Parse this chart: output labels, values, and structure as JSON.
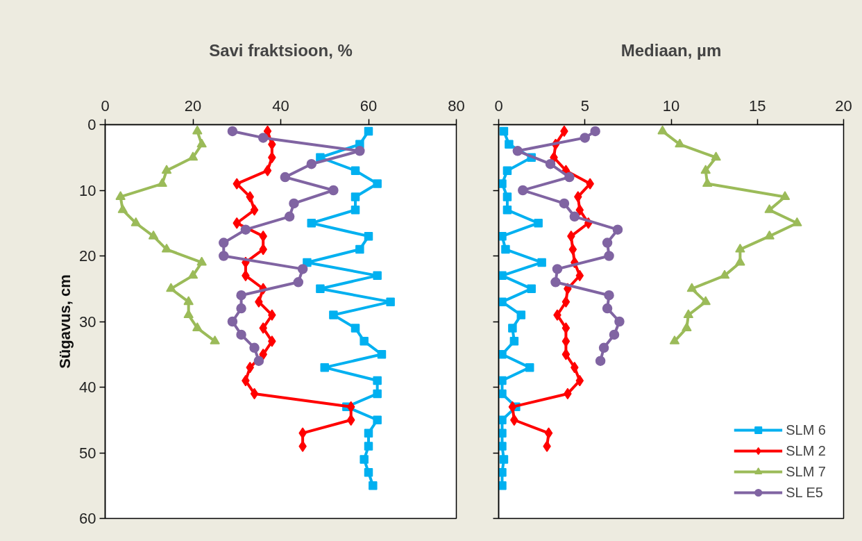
{
  "chart_data": [
    {
      "type": "line",
      "title": "Savi fraktsioon, %",
      "ylabel": "Sügavus, cm",
      "xlim": [
        0,
        80
      ],
      "xticks": [
        0,
        20,
        40,
        60,
        80
      ],
      "ylim": [
        60,
        0
      ],
      "yticks": [
        0,
        10,
        20,
        30,
        40,
        50,
        60
      ],
      "grid": false,
      "legend": false,
      "series": [
        {
          "color": "#00b0f0",
          "marker": "square",
          "x": [
            60,
            58,
            49,
            57,
            62,
            57,
            57,
            47,
            60,
            58,
            46,
            62,
            49,
            65,
            52,
            57,
            59,
            63,
            50,
            62,
            62,
            55,
            62,
            60,
            60,
            59,
            60,
            61
          ],
          "values": [
            1,
            3,
            5,
            7,
            9,
            11,
            13,
            15,
            17,
            19,
            21,
            23,
            25,
            27,
            29,
            31,
            33,
            35,
            37,
            39,
            41,
            43,
            45,
            47,
            49,
            51,
            53,
            55
          ]
        },
        {
          "color": "#ff0000",
          "marker": "diamond",
          "x": [
            37,
            38,
            38,
            37,
            30,
            33,
            34,
            30,
            36,
            36,
            32,
            32,
            36,
            35,
            38,
            36,
            38,
            36,
            33,
            32,
            34,
            56,
            56,
            45,
            45
          ],
          "values": [
            1,
            3,
            5,
            7,
            9,
            11,
            13,
            15,
            17,
            19,
            21,
            23,
            25,
            27,
            29,
            31,
            33,
            35,
            37,
            39,
            41,
            43,
            45,
            47,
            49
          ]
        },
        {
          "color": "#9bbb59",
          "marker": "triangle",
          "x": [
            21,
            22,
            20,
            14,
            13,
            3.5,
            4,
            7,
            11,
            14,
            22,
            20,
            15,
            19,
            19,
            21,
            25
          ],
          "values": [
            1,
            3,
            5,
            7,
            9,
            11,
            13,
            15,
            17,
            19,
            21,
            23,
            25,
            27,
            29,
            31,
            33
          ]
        },
        {
          "color": "#8064a2",
          "marker": "circle",
          "x": [
            29,
            36,
            58,
            47,
            41,
            52,
            43,
            42,
            32,
            27,
            27,
            45,
            44,
            31,
            31,
            29,
            31,
            34,
            35
          ],
          "values": [
            1,
            2,
            4,
            6,
            8,
            10,
            12,
            14,
            16,
            18,
            20,
            22,
            24,
            26,
            28,
            30,
            32,
            34,
            36
          ]
        }
      ]
    },
    {
      "type": "line",
      "title": "Mediaan, µm",
      "xlim": [
        0,
        20
      ],
      "xticks": [
        0,
        5,
        10,
        15,
        20
      ],
      "ylim": [
        60,
        0
      ],
      "yticks": [
        0,
        10,
        20,
        30,
        40,
        50,
        60
      ],
      "grid": false,
      "legend": "bottom right",
      "tick_labels": "x",
      "series": [
        {
          "name": "SLM 6",
          "color": "#00b0f0",
          "marker": "square",
          "x": [
            0.3,
            0.6,
            1.9,
            0.5,
            0.2,
            0.5,
            0.5,
            2.3,
            0.2,
            0.4,
            2.5,
            0.2,
            1.9,
            0.2,
            1.3,
            0.8,
            0.9,
            0.2,
            1.8,
            0.2,
            0.2,
            1.0,
            0.2,
            0.2,
            0.2,
            0.3,
            0.2,
            0.2
          ],
          "values": [
            1,
            3,
            5,
            7,
            9,
            11,
            13,
            15,
            17,
            19,
            21,
            23,
            25,
            27,
            29,
            31,
            33,
            35,
            37,
            39,
            41,
            43,
            45,
            47,
            49,
            51,
            53,
            55
          ]
        },
        {
          "name": "SLM 2",
          "color": "#ff0000",
          "marker": "diamond",
          "x": [
            3.8,
            3.3,
            3.2,
            3.9,
            5.3,
            4.6,
            4.7,
            5.2,
            4.2,
            4.3,
            4.4,
            4.7,
            4.0,
            3.9,
            3.4,
            3.9,
            3.9,
            3.9,
            4.4,
            4.7,
            4.0,
            0.8,
            0.9,
            2.9,
            2.8
          ],
          "values": [
            1,
            3,
            5,
            7,
            9,
            11,
            13,
            15,
            17,
            19,
            21,
            23,
            25,
            27,
            29,
            31,
            33,
            35,
            37,
            39,
            41,
            43,
            45,
            47,
            49
          ]
        },
        {
          "name": "SLM 7",
          "color": "#9bbb59",
          "marker": "triangle",
          "x": [
            9.5,
            10.5,
            12.6,
            12.0,
            12.1,
            16.6,
            15.7,
            17.3,
            15.7,
            14.0,
            14.0,
            13.1,
            11.2,
            12.0,
            11.0,
            10.9,
            10.2
          ],
          "values": [
            1,
            3,
            5,
            7,
            9,
            11,
            13,
            15,
            17,
            19,
            21,
            23,
            25,
            27,
            29,
            31,
            33
          ]
        },
        {
          "name": "SL E5",
          "color": "#8064a2",
          "marker": "circle",
          "x": [
            5.6,
            5.0,
            1.1,
            3.0,
            4.1,
            1.4,
            3.8,
            4.4,
            6.9,
            6.3,
            6.4,
            3.4,
            3.3,
            6.4,
            6.3,
            7.0,
            6.7,
            6.1,
            5.9
          ],
          "values": [
            1,
            2,
            4,
            6,
            8,
            10,
            12,
            14,
            16,
            18,
            20,
            22,
            24,
            26,
            28,
            30,
            32,
            34,
            36
          ]
        }
      ]
    }
  ]
}
